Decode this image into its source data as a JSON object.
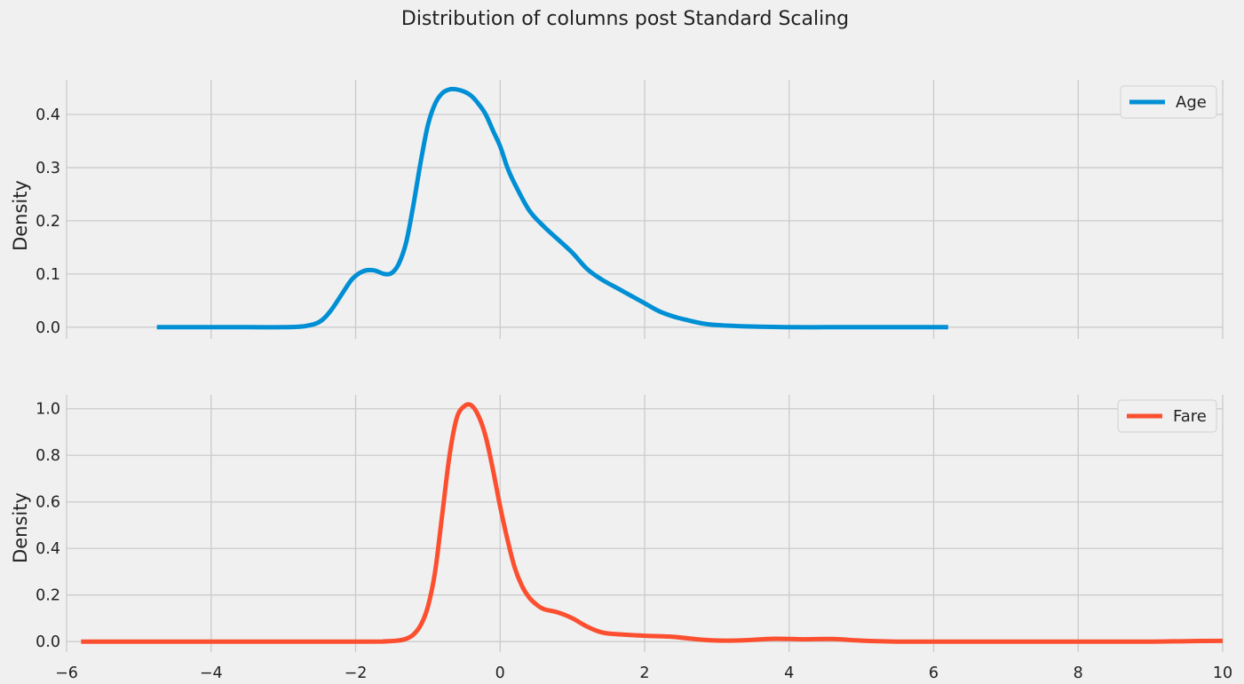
{
  "figure": {
    "suptitle": "Distribution of columns post Standard Scaling",
    "background": "#f0f0f0",
    "grid_color": "#cbcbcb"
  },
  "chart_data": [
    {
      "type": "line",
      "title": "",
      "xlabel": "",
      "ylabel": "Density",
      "xlim": [
        -6,
        10
      ],
      "ylim": [
        -0.022,
        0.465
      ],
      "xticks": [
        -6,
        -4,
        -2,
        0,
        2,
        4,
        6,
        8,
        10
      ],
      "xtick_labels_visible": false,
      "yticks": [
        0.0,
        0.1,
        0.2,
        0.3,
        0.4
      ],
      "ytick_labels": [
        "0.0",
        "0.1",
        "0.2",
        "0.3",
        "0.4"
      ],
      "grid": true,
      "legend": {
        "placement": "upper right",
        "entries": [
          "Age"
        ]
      },
      "series": [
        {
          "name": "Age",
          "color": "#008fd5",
          "x": [
            -4.75,
            -3.5,
            -3.0,
            -2.7,
            -2.5,
            -2.35,
            -2.2,
            -2.05,
            -1.9,
            -1.75,
            -1.6,
            -1.5,
            -1.4,
            -1.3,
            -1.2,
            -1.1,
            -1.0,
            -0.9,
            -0.8,
            -0.7,
            -0.6,
            -0.5,
            -0.4,
            -0.3,
            -0.2,
            -0.1,
            0.0,
            0.1,
            0.2,
            0.4,
            0.6,
            0.8,
            1.0,
            1.2,
            1.4,
            1.6,
            1.8,
            2.0,
            2.2,
            2.4,
            2.6,
            2.8,
            3.0,
            3.3,
            3.6,
            4.0,
            4.5,
            5.0,
            6.2
          ],
          "y": [
            0.0,
            0.0,
            0.0,
            0.002,
            0.01,
            0.03,
            0.06,
            0.09,
            0.105,
            0.107,
            0.1,
            0.102,
            0.12,
            0.16,
            0.23,
            0.31,
            0.38,
            0.42,
            0.44,
            0.447,
            0.447,
            0.443,
            0.435,
            0.42,
            0.4,
            0.37,
            0.34,
            0.3,
            0.27,
            0.22,
            0.19,
            0.165,
            0.14,
            0.11,
            0.09,
            0.075,
            0.06,
            0.045,
            0.03,
            0.02,
            0.013,
            0.007,
            0.004,
            0.002,
            0.001,
            0.0,
            0.0,
            0.0,
            0.0
          ]
        }
      ]
    },
    {
      "type": "line",
      "title": "",
      "xlabel": "",
      "ylabel": "Density",
      "xlim": [
        -6,
        10
      ],
      "ylim": [
        -0.045,
        1.06
      ],
      "xticks": [
        -6,
        -4,
        -2,
        0,
        2,
        4,
        6,
        8,
        10
      ],
      "xtick_labels": [
        "−6",
        "−4",
        "−2",
        "0",
        "2",
        "4",
        "6",
        "8",
        "10"
      ],
      "yticks": [
        0.0,
        0.2,
        0.4,
        0.6,
        0.8,
        1.0
      ],
      "ytick_labels": [
        "0.0",
        "0.2",
        "0.4",
        "0.6",
        "0.8",
        "1.0"
      ],
      "grid": true,
      "legend": {
        "placement": "upper right",
        "entries": [
          "Fare"
        ]
      },
      "series": [
        {
          "name": "Fare",
          "color": "#fc4f30",
          "x": [
            -5.8,
            -2.0,
            -1.6,
            -1.4,
            -1.3,
            -1.2,
            -1.1,
            -1.0,
            -0.9,
            -0.8,
            -0.7,
            -0.6,
            -0.5,
            -0.4,
            -0.3,
            -0.2,
            -0.1,
            0.0,
            0.1,
            0.2,
            0.3,
            0.4,
            0.5,
            0.6,
            0.8,
            1.0,
            1.2,
            1.4,
            1.6,
            2.0,
            2.4,
            2.8,
            3.1,
            3.4,
            3.8,
            4.2,
            4.6,
            5.0,
            5.5,
            6.0,
            7.0,
            8.0,
            9.0,
            9.5,
            10.0
          ],
          "y": [
            0.0,
            0.0,
            0.001,
            0.005,
            0.012,
            0.03,
            0.07,
            0.15,
            0.3,
            0.55,
            0.8,
            0.96,
            1.01,
            1.015,
            0.97,
            0.88,
            0.74,
            0.58,
            0.44,
            0.32,
            0.24,
            0.19,
            0.16,
            0.14,
            0.125,
            0.1,
            0.065,
            0.04,
            0.032,
            0.025,
            0.02,
            0.008,
            0.004,
            0.006,
            0.012,
            0.01,
            0.011,
            0.004,
            0.0,
            0.0,
            0.0,
            0.0,
            0.0,
            0.002,
            0.003
          ]
        }
      ]
    }
  ]
}
